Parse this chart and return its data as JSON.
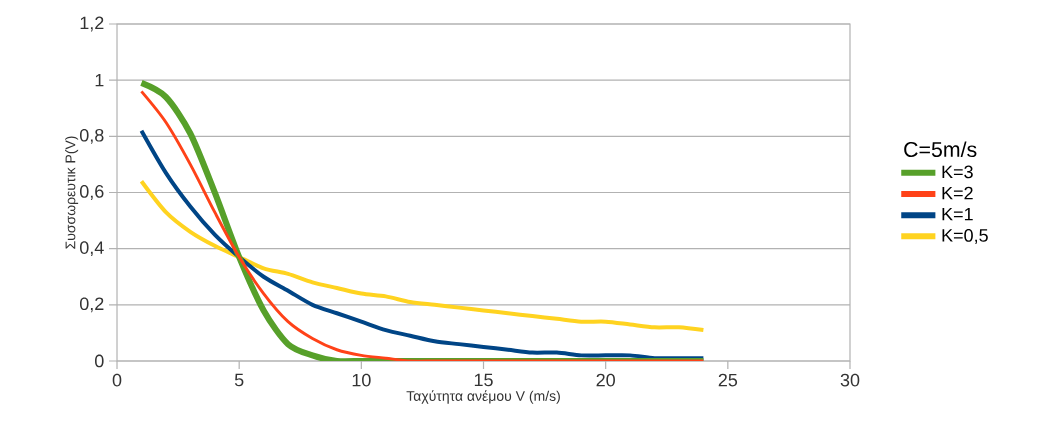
{
  "chart_data": {
    "type": "line",
    "xlabel": "Ταχύτητα ανέμου V (m/s)",
    "ylabel": "Συσσωρευτικ P(V)",
    "legend_title": "C=5m/s",
    "x": [
      1,
      2,
      3,
      4,
      5,
      6,
      7,
      8,
      9,
      10,
      11,
      12,
      13,
      14,
      15,
      16,
      17,
      18,
      19,
      20,
      21,
      22,
      23,
      24
    ],
    "series": [
      {
        "name": "K=3",
        "color": "#57a02a",
        "values": [
          0.99,
          0.94,
          0.81,
          0.6,
          0.37,
          0.18,
          0.06,
          0.02,
          0,
          0,
          0,
          0,
          0,
          0,
          0,
          0,
          0,
          0,
          0,
          0,
          0,
          0,
          0,
          0
        ]
      },
      {
        "name": "K=2",
        "color": "#ff4218",
        "values": [
          0.96,
          0.85,
          0.7,
          0.53,
          0.37,
          0.24,
          0.14,
          0.08,
          0.04,
          0.02,
          0.01,
          0,
          0,
          0,
          0,
          0,
          0,
          0,
          0,
          0,
          0,
          0,
          0,
          0
        ]
      },
      {
        "name": "K=1",
        "color": "#004586",
        "values": [
          0.82,
          0.67,
          0.55,
          0.45,
          0.37,
          0.3,
          0.25,
          0.2,
          0.17,
          0.14,
          0.11,
          0.09,
          0.07,
          0.06,
          0.05,
          0.04,
          0.03,
          0.03,
          0.02,
          0.02,
          0.02,
          0.01,
          0.01,
          0.01
        ]
      },
      {
        "name": "K=0,5",
        "color": "#ffd320",
        "values": [
          0.64,
          0.53,
          0.46,
          0.41,
          0.37,
          0.33,
          0.31,
          0.28,
          0.26,
          0.24,
          0.23,
          0.21,
          0.2,
          0.19,
          0.18,
          0.17,
          0.16,
          0.15,
          0.14,
          0.14,
          0.13,
          0.12,
          0.12,
          0.11
        ]
      }
    ],
    "xlim": [
      0,
      30
    ],
    "xticks": [
      0,
      5,
      10,
      15,
      20,
      25,
      30
    ],
    "ylim": [
      0,
      1.2
    ],
    "yticks": [
      0,
      {
        "value": 0.2,
        "label": "0,2"
      },
      {
        "value": 0.4,
        "label": "0,4"
      },
      {
        "value": 0.6,
        "label": "0,6"
      },
      {
        "value": 0.8,
        "label": "0,8"
      },
      1,
      {
        "value": 1.2,
        "label": "1,2"
      }
    ],
    "grid": "y",
    "legend": "right",
    "marker": "none",
    "line_style": "solid"
  }
}
